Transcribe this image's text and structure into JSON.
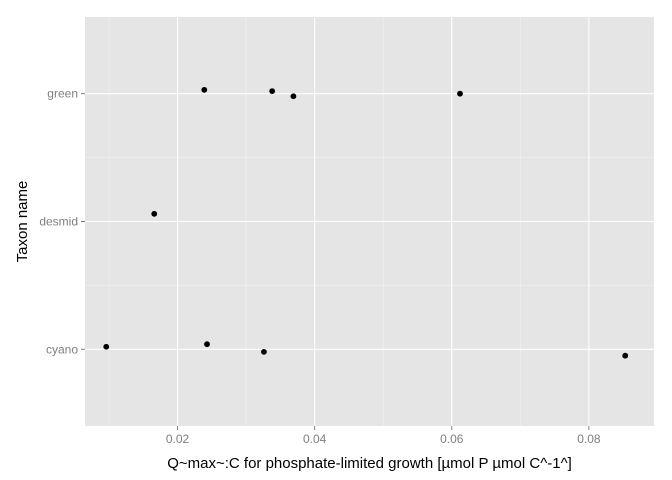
{
  "chart_data": {
    "type": "scatter",
    "xlabel": "Q~max~:C for phosphate-limited growth [µmol P µmol C^-1^]",
    "ylabel": "Taxon name",
    "categories": [
      "cyano",
      "desmid",
      "green"
    ],
    "xlim": [
      0.0065,
      0.0895
    ],
    "x_ticks": [
      0.02,
      0.04,
      0.06,
      0.08
    ],
    "x_tick_labels": [
      "0.02",
      "0.04",
      "0.06",
      "0.08"
    ],
    "points": [
      {
        "category": "green",
        "x": 0.0239,
        "jitter": 0.03
      },
      {
        "category": "green",
        "x": 0.0338,
        "jitter": 0.02
      },
      {
        "category": "green",
        "x": 0.0369,
        "jitter": -0.02
      },
      {
        "category": "green",
        "x": 0.0612,
        "jitter": 0.0
      },
      {
        "category": "desmid",
        "x": 0.0166,
        "jitter": 0.06
      },
      {
        "category": "cyano",
        "x": 0.0096,
        "jitter": 0.02
      },
      {
        "category": "cyano",
        "x": 0.0243,
        "jitter": 0.04
      },
      {
        "category": "cyano",
        "x": 0.0326,
        "jitter": -0.02
      },
      {
        "category": "cyano",
        "x": 0.0853,
        "jitter": -0.05
      }
    ],
    "grid": true,
    "panel_background": "#e5e5e5",
    "grid_major_color": "#ffffff",
    "grid_minor_color": "#f2f2f2",
    "point_color": "#000000"
  }
}
